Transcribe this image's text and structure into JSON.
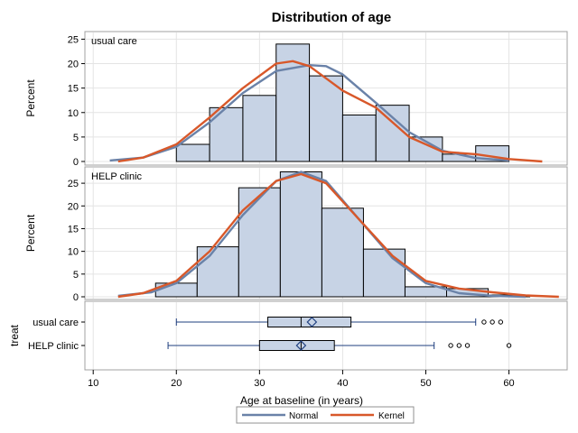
{
  "chart_data": {
    "type": "bar",
    "title": "Distribution of age",
    "xlabel": "Age at baseline (in years)",
    "x_ticks": [
      10,
      20,
      30,
      40,
      50,
      60
    ],
    "xlim": [
      9,
      67
    ],
    "grid": true,
    "legend": {
      "position": "bottom",
      "entries": [
        {
          "name": "Normal",
          "color": "#6a82a8"
        },
        {
          "name": "Kernel",
          "color": "#d8582a"
        }
      ]
    },
    "colors": {
      "bar_fill": "#c7d3e5",
      "bar_stroke": "#000000",
      "normal_curve": "#6a82a8",
      "kernel_curve": "#d8582a",
      "box_line": "#1f3f7f"
    },
    "panels": [
      {
        "label": "usual care",
        "ylabel": "Percent",
        "ylim": [
          0,
          26
        ],
        "y_ticks": [
          0,
          5,
          10,
          15,
          20,
          25
        ],
        "bin_width": 4,
        "bins": [
          {
            "start": 20,
            "value": 3.5
          },
          {
            "start": 24,
            "value": 11
          },
          {
            "start": 28,
            "value": 13.5
          },
          {
            "start": 32,
            "value": 24
          },
          {
            "start": 36,
            "value": 17.5
          },
          {
            "start": 40,
            "value": 9.5
          },
          {
            "start": 44,
            "value": 11.5
          },
          {
            "start": 48,
            "value": 5
          },
          {
            "start": 52,
            "value": 1.5
          },
          {
            "start": 56,
            "value": 3.2
          }
        ],
        "normal": {
          "x": [
            12,
            16,
            20,
            24,
            28,
            32,
            36,
            38,
            40,
            44,
            48,
            52,
            56,
            60
          ],
          "y": [
            0.2,
            0.8,
            3,
            8,
            14,
            18.5,
            19.7,
            19.5,
            17.8,
            12,
            6,
            2.2,
            0.7,
            0.2
          ]
        },
        "kernel": {
          "x": [
            13,
            16,
            20,
            24,
            28,
            32,
            34,
            36,
            38,
            40,
            44,
            48,
            52,
            56,
            60,
            64
          ],
          "y": [
            0,
            0.8,
            3.5,
            9,
            15,
            20,
            20.5,
            19.5,
            17,
            14.5,
            11,
            5,
            2,
            1.5,
            0.5,
            0
          ]
        }
      },
      {
        "label": "HELP clinic",
        "ylabel": "Percent",
        "ylim": [
          0,
          28
        ],
        "y_ticks": [
          0,
          5,
          10,
          15,
          20,
          25
        ],
        "bin_width": 5,
        "bins": [
          {
            "start": 17.5,
            "value": 3
          },
          {
            "start": 22.5,
            "value": 11
          },
          {
            "start": 27.5,
            "value": 24
          },
          {
            "start": 32.5,
            "value": 27.5
          },
          {
            "start": 37.5,
            "value": 19.5
          },
          {
            "start": 42.5,
            "value": 10.5
          },
          {
            "start": 47.5,
            "value": 2.2
          },
          {
            "start": 52.5,
            "value": 1.8
          },
          {
            "start": 57.5,
            "value": 0.4
          }
        ],
        "normal": {
          "x": [
            13,
            17,
            20,
            24,
            28,
            32,
            35,
            38,
            42,
            46,
            50,
            54,
            58,
            62
          ],
          "y": [
            0.2,
            1,
            3,
            9,
            18,
            25.5,
            27.5,
            25.5,
            17,
            8.5,
            3,
            0.8,
            0.2,
            0
          ]
        },
        "kernel": {
          "x": [
            13,
            16,
            20,
            24,
            28,
            32,
            35,
            38,
            42,
            46,
            50,
            54,
            58,
            62,
            66
          ],
          "y": [
            0,
            0.8,
            3.5,
            10,
            19,
            25.5,
            27,
            25,
            17,
            9,
            3.5,
            1.8,
            1,
            0.3,
            0
          ]
        }
      }
    ],
    "boxplot": {
      "ylabel": "treat",
      "groups": [
        {
          "name": "usual care",
          "whisker_low": 20,
          "q1": 31,
          "median": 35,
          "mean": 36.3,
          "q3": 41,
          "whisker_high": 56,
          "outliers": [
            57,
            58,
            59
          ]
        },
        {
          "name": "HELP clinic",
          "whisker_low": 19,
          "q1": 30,
          "median": 35,
          "mean": 35,
          "q3": 39,
          "whisker_high": 51,
          "outliers": [
            53,
            54,
            55,
            60
          ]
        }
      ]
    }
  }
}
